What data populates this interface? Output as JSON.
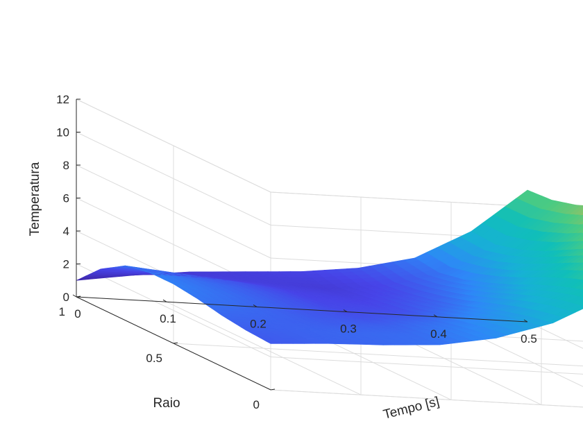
{
  "chart_data": {
    "type": "surface",
    "title": "",
    "xlabel": "Tempo [s]",
    "ylabel": "Raio",
    "zlabel": "Temperatura",
    "xlim": [
      0,
      0.5
    ],
    "ylim": [
      0,
      1
    ],
    "zlim": [
      0,
      12
    ],
    "xticks": [
      "0",
      "0.1",
      "0.2",
      "0.3",
      "0.4",
      "0.5"
    ],
    "yticks": [
      "0",
      "0.5",
      "1"
    ],
    "zticks": [
      "0",
      "2",
      "4",
      "6",
      "8",
      "10",
      "12"
    ],
    "grid": true,
    "colormap": "parula",
    "colormap_stops": [
      "#3e26a8",
      "#4744e8",
      "#2e87f7",
      "#17b1d5",
      "#10bfb9",
      "#4bcb82",
      "#b8bd58",
      "#fcbf3c",
      "#f9fb15"
    ],
    "surface": {
      "x": [
        0,
        0.0625,
        0.125,
        0.1875,
        0.25,
        0.3125,
        0.375,
        0.4375,
        0.5
      ],
      "y": [
        0,
        0.125,
        0.25,
        0.375,
        0.5,
        0.625,
        0.75,
        0.875,
        1
      ],
      "z": [
        [
          2.8,
          3.0,
          3.1,
          3.3,
          3.9,
          5.0,
          6.8,
          9.5,
          12.0
        ],
        [
          2.9,
          3.0,
          3.1,
          3.2,
          3.7,
          4.7,
          6.5,
          9.2,
          11.8
        ],
        [
          3.1,
          3.0,
          2.9,
          3.0,
          3.4,
          4.3,
          6.0,
          8.6,
          11.2
        ],
        [
          3.4,
          3.1,
          2.8,
          2.7,
          3.0,
          3.8,
          5.4,
          7.8,
          10.6
        ],
        [
          3.6,
          3.2,
          2.8,
          2.5,
          2.6,
          3.3,
          4.7,
          7.0,
          9.8
        ],
        [
          3.6,
          3.2,
          2.8,
          2.4,
          2.4,
          2.9,
          4.1,
          6.2,
          9.1
        ],
        [
          3.3,
          3.0,
          2.7,
          2.3,
          2.2,
          2.6,
          3.6,
          5.6,
          8.5
        ],
        [
          2.4,
          2.3,
          2.2,
          2.1,
          2.0,
          2.4,
          3.3,
          5.2,
          8.1
        ],
        [
          1.0,
          1.5,
          1.9,
          2.1,
          2.3,
          2.7,
          3.5,
          5.3,
          8.0
        ]
      ]
    }
  }
}
